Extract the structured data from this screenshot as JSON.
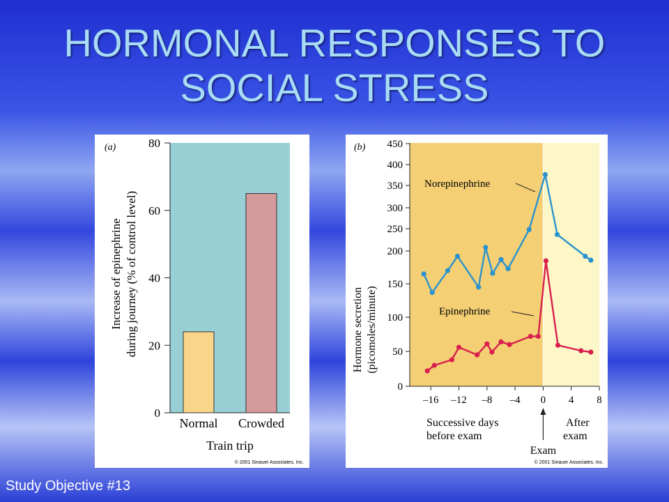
{
  "slide": {
    "title_lines": [
      "HORMONAL RESPONSES TO",
      "SOCIAL STRESS"
    ],
    "footer": "Study Objective #13"
  },
  "colors": {
    "panel_a_bg": "#97cfd5",
    "bar_normal": "#f9d489",
    "bar_crowded": "#d59a9b",
    "panel_b_before": "#f5cf74",
    "panel_b_after": "#fdf6c6",
    "norepinephrine": "#2a93cf",
    "epinephrine": "#d81f4e"
  },
  "chart_data": [
    {
      "type": "bar",
      "panel_label": "(a)",
      "categories": [
        "Normal",
        "Crowded"
      ],
      "values": [
        24,
        65
      ],
      "xlabel": "Train trip",
      "ylabel_line1": "Increase of epinephrine",
      "ylabel_line2": "during journey (% of control level)",
      "ylim": [
        0,
        80
      ],
      "yticks": [
        "0",
        "20",
        "40",
        "60",
        "80"
      ],
      "copyright": "© 2001 Sinauer Associates, Inc."
    },
    {
      "type": "line",
      "panel_label": "(b)",
      "xlim": [
        -19,
        8
      ],
      "xticks": [
        "–16",
        "–12",
        "–8",
        "–4",
        "0",
        "4",
        "8"
      ],
      "yticks": [
        "0",
        "50",
        "100",
        "150",
        "200",
        "250",
        "300",
        "350",
        "400",
        "450"
      ],
      "ylabel_line1": "Hormone secretion",
      "ylabel_line2": "(picomoles/minute)",
      "xlabel_before_line1": "Successive days",
      "xlabel_before_line2": "before exam",
      "xlabel_after_line1": "After",
      "xlabel_after_line2": "exam",
      "exam_label": "Exam",
      "series": [
        {
          "name": "Norepinephrine",
          "x": [
            -17,
            -15.8,
            -13.6,
            -12.2,
            -9.2,
            -8.2,
            -7.2,
            -6,
            -5,
            -2,
            0.3,
            2,
            6,
            6.8
          ],
          "y": [
            165,
            137,
            170,
            192,
            145,
            208,
            166,
            187,
            173,
            248,
            376,
            237,
            192,
            186
          ]
        },
        {
          "name": "Epinephrine",
          "x": [
            -16.5,
            -15.5,
            -13,
            -12,
            -9.4,
            -8,
            -7.3,
            -6,
            -4.8,
            -1.8,
            -0.7,
            0.4,
            2.1,
            5.4,
            6.8
          ],
          "y": [
            22,
            30,
            38,
            56,
            45,
            61,
            49,
            64,
            60,
            72,
            72,
            185,
            59,
            51,
            49
          ]
        }
      ],
      "copyright": "© 2001 Sinauer Associates, Inc."
    }
  ]
}
